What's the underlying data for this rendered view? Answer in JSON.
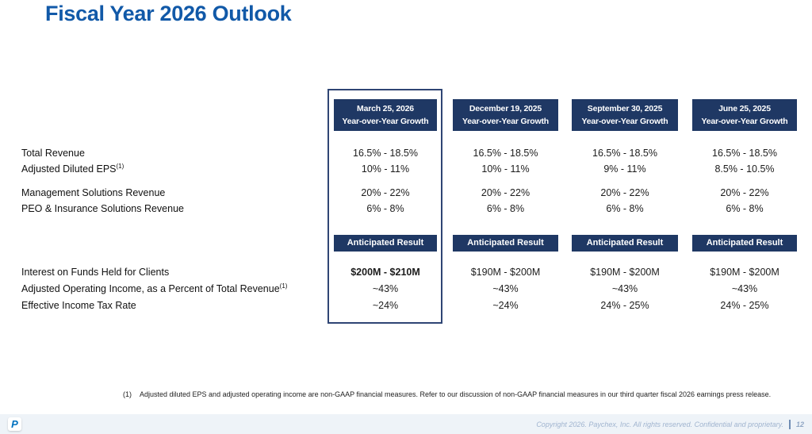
{
  "slide": {
    "title": "Fiscal Year 2026 Outlook"
  },
  "table": {
    "row_labels": {
      "growth": [
        {
          "text": "Total Revenue",
          "sup": ""
        },
        {
          "text": "Adjusted Diluted EPS",
          "sup": "(1)"
        },
        {
          "text": "Management Solutions Revenue",
          "sup": ""
        },
        {
          "text": "PEO & Insurance Solutions Revenue",
          "sup": ""
        }
      ],
      "result": [
        {
          "text": "Interest on Funds Held for Clients",
          "sup": ""
        },
        {
          "text": "Adjusted Operating Income, as a Percent of Total Revenue",
          "sup": "(1)"
        },
        {
          "text": "Effective Income Tax Rate",
          "sup": ""
        }
      ]
    },
    "columns": [
      {
        "date": "March 25, 2026",
        "subtitle": "Year-over-Year Growth",
        "growth": [
          "16.5% - 18.5%",
          "10% - 11%",
          "20% - 22%",
          "6% - 8%"
        ],
        "banner": "Anticipated Result",
        "results": [
          "$200M - $210M",
          "~43%",
          "~24%"
        ]
      },
      {
        "date": "December 19, 2025",
        "subtitle": "Year-over-Year Growth",
        "growth": [
          "16.5% - 18.5%",
          "10% - 11%",
          "20% - 22%",
          "6% - 8%"
        ],
        "banner": "Anticipated Result",
        "results": [
          "$190M - $200M",
          "~43%",
          "~24%"
        ]
      },
      {
        "date": "September 30, 2025",
        "subtitle": "Year-over-Year Growth",
        "growth": [
          "16.5% - 18.5%",
          "9% - 11%",
          "20% - 22%",
          "6% - 8%"
        ],
        "banner": "Anticipated Result",
        "results": [
          "$190M - $200M",
          "~43%",
          "24% - 25%"
        ]
      },
      {
        "date": "June 25, 2025",
        "subtitle": "Year-over-Year Growth",
        "growth": [
          "16.5% - 18.5%",
          "8.5% - 10.5%",
          "20% - 22%",
          "6% - 8%"
        ],
        "banner": "Anticipated Result",
        "results": [
          "$190M - $200M",
          "~43%",
          "24% - 25%"
        ]
      }
    ]
  },
  "footnote": {
    "marker": "(1)",
    "text": "Adjusted diluted EPS and adjusted operating income are non-GAAP financial measures. Refer to our discussion of non-GAAP financial measures in our third quarter fiscal 2026 earnings press release."
  },
  "footer": {
    "logo_letter": "P",
    "copyright": "Copyright 2026. Paychex, Inc. All rights reserved. Confidential and proprietary.",
    "page_number": "12"
  },
  "colors": {
    "navy": "#1F3864",
    "title_blue": "#1159A8",
    "highlight_border": "#2F4574",
    "footer_bg": "#EEF3F8",
    "footer_text": "#A0B4CF",
    "logo_blue": "#0072BF"
  }
}
